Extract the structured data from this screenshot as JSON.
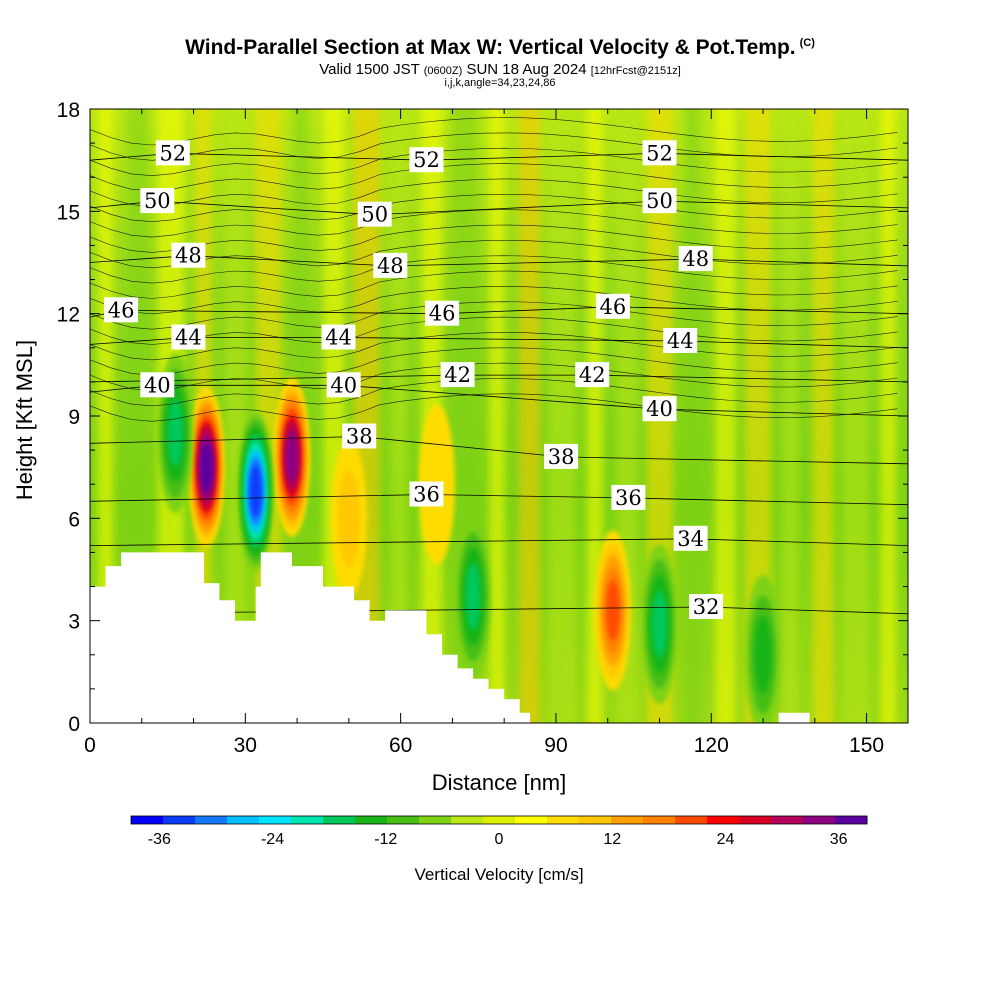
{
  "header": {
    "title": "Wind-Parallel Section at Max W: Vertical Velocity & Pot.Temp.",
    "copyright": "(C)",
    "valid_prefix": "Valid 1500 JST",
    "valid_z": "(0600Z)",
    "valid_day": "SUN 18 Aug 2024",
    "forecast": "[12hrFcst@2151z]",
    "indices": "i,j,k,angle=34,23,24,86"
  },
  "chart_data": {
    "type": "heatmap",
    "xlabel": "Distance [nm]",
    "ylabel": "Height [Kft MSL]",
    "xlim": [
      0,
      158
    ],
    "ylim": [
      0,
      18
    ],
    "x_ticks": [
      "0",
      "30",
      "60",
      "90",
      "120",
      "150"
    ],
    "y_ticks": [
      "0",
      "3",
      "6",
      "9",
      "12",
      "15",
      "18"
    ],
    "x_tick_values": [
      0,
      30,
      60,
      90,
      120,
      150
    ],
    "y_tick_values": [
      0,
      3,
      6,
      9,
      12,
      15,
      18
    ],
    "shaded_field": "Vertical Velocity [cm/s]",
    "contour_field": "Potential Temperature",
    "colorbar": {
      "label": "Vertical Velocity [cm/s]",
      "min": -39,
      "max": 39,
      "step": 3,
      "tick_labels": [
        "-36",
        "-24",
        "-12",
        "0",
        "12",
        "24",
        "36"
      ],
      "tick_values": [
        -36,
        -24,
        -12,
        0,
        12,
        24,
        36
      ],
      "colors": [
        "#0000ff",
        "#0a3cff",
        "#1478ff",
        "#00bfff",
        "#00e5ff",
        "#00e5b0",
        "#00c85a",
        "#19b419",
        "#46be14",
        "#7dd214",
        "#b9e614",
        "#dcf000",
        "#ffff00",
        "#ffdc00",
        "#ffc800",
        "#ffa000",
        "#ff8200",
        "#ff4b00",
        "#ff0000",
        "#d70023",
        "#b4005a",
        "#8c0082",
        "#5a00a0"
      ]
    },
    "updraft_cores": [
      {
        "x": 22.5,
        "y": 7.5,
        "value": 38
      },
      {
        "x": 39,
        "y": 7.8,
        "value": 36
      },
      {
        "x": 101,
        "y": 3.3,
        "value": 22
      },
      {
        "x": 50,
        "y": 6.0,
        "value": 12
      },
      {
        "x": 67,
        "y": 7.0,
        "value": 9
      }
    ],
    "downdraft_cores": [
      {
        "x": 32,
        "y": 6.8,
        "value": -34
      },
      {
        "x": 16.5,
        "y": 8.5,
        "value": -20
      },
      {
        "x": 74,
        "y": 3.7,
        "value": -20
      },
      {
        "x": 110,
        "y": 2.9,
        "value": -20
      },
      {
        "x": 130,
        "y": 2.0,
        "value": -14
      }
    ],
    "contour_labels": [
      {
        "text": "52",
        "x": 16,
        "y": 16.7
      },
      {
        "text": "52",
        "x": 65,
        "y": 16.5
      },
      {
        "text": "52",
        "x": 110,
        "y": 16.7
      },
      {
        "text": "50",
        "x": 13,
        "y": 15.3
      },
      {
        "text": "50",
        "x": 55,
        "y": 14.9
      },
      {
        "text": "50",
        "x": 110,
        "y": 15.3
      },
      {
        "text": "48",
        "x": 19,
        "y": 13.7
      },
      {
        "text": "48",
        "x": 58,
        "y": 13.4
      },
      {
        "text": "48",
        "x": 117,
        "y": 13.6
      },
      {
        "text": "46",
        "x": 6,
        "y": 12.1
      },
      {
        "text": "46",
        "x": 68,
        "y": 12.0
      },
      {
        "text": "46",
        "x": 101,
        "y": 12.2
      },
      {
        "text": "44",
        "x": 19,
        "y": 11.3
      },
      {
        "text": "44",
        "x": 48,
        "y": 11.3
      },
      {
        "text": "44",
        "x": 114,
        "y": 11.2
      },
      {
        "text": "40",
        "x": 13,
        "y": 9.9
      },
      {
        "text": "40",
        "x": 49,
        "y": 9.9
      },
      {
        "text": "42",
        "x": 71,
        "y": 10.2
      },
      {
        "text": "42",
        "x": 97,
        "y": 10.2
      },
      {
        "text": "40",
        "x": 110,
        "y": 9.2
      },
      {
        "text": "38",
        "x": 52,
        "y": 8.4
      },
      {
        "text": "38",
        "x": 91,
        "y": 7.8
      },
      {
        "text": "36",
        "x": 65,
        "y": 6.7
      },
      {
        "text": "36",
        "x": 104,
        "y": 6.6
      },
      {
        "text": "34",
        "x": 116,
        "y": 5.4
      },
      {
        "text": "32",
        "x": 119,
        "y": 3.4
      }
    ],
    "terrain_profile": [
      [
        0,
        4
      ],
      [
        3,
        4
      ],
      [
        3,
        4.6
      ],
      [
        6,
        4.6
      ],
      [
        6,
        5
      ],
      [
        22,
        5
      ],
      [
        22,
        4.1
      ],
      [
        25,
        4.1
      ],
      [
        25,
        3.6
      ],
      [
        28,
        3.6
      ],
      [
        28,
        3
      ],
      [
        32,
        3
      ],
      [
        32,
        4
      ],
      [
        33,
        4
      ],
      [
        33,
        5
      ],
      [
        39,
        5
      ],
      [
        39,
        4.6
      ],
      [
        45,
        4.6
      ],
      [
        45,
        4
      ],
      [
        51,
        4
      ],
      [
        51,
        3.6
      ],
      [
        54,
        3.6
      ],
      [
        54,
        3
      ],
      [
        57,
        3
      ],
      [
        57,
        3.3
      ],
      [
        65,
        3.3
      ],
      [
        65,
        2.6
      ],
      [
        68,
        2.6
      ],
      [
        68,
        2
      ],
      [
        71,
        2
      ],
      [
        71,
        1.6
      ],
      [
        74,
        1.6
      ],
      [
        74,
        1.3
      ],
      [
        77,
        1.3
      ],
      [
        77,
        1
      ],
      [
        80,
        1
      ],
      [
        80,
        0.7
      ],
      [
        83,
        0.7
      ],
      [
        83,
        0.3
      ],
      [
        85,
        0.3
      ],
      [
        85,
        0
      ],
      [
        133,
        0
      ],
      [
        133,
        0.3
      ],
      [
        139,
        0.3
      ],
      [
        139,
        0
      ]
    ]
  }
}
